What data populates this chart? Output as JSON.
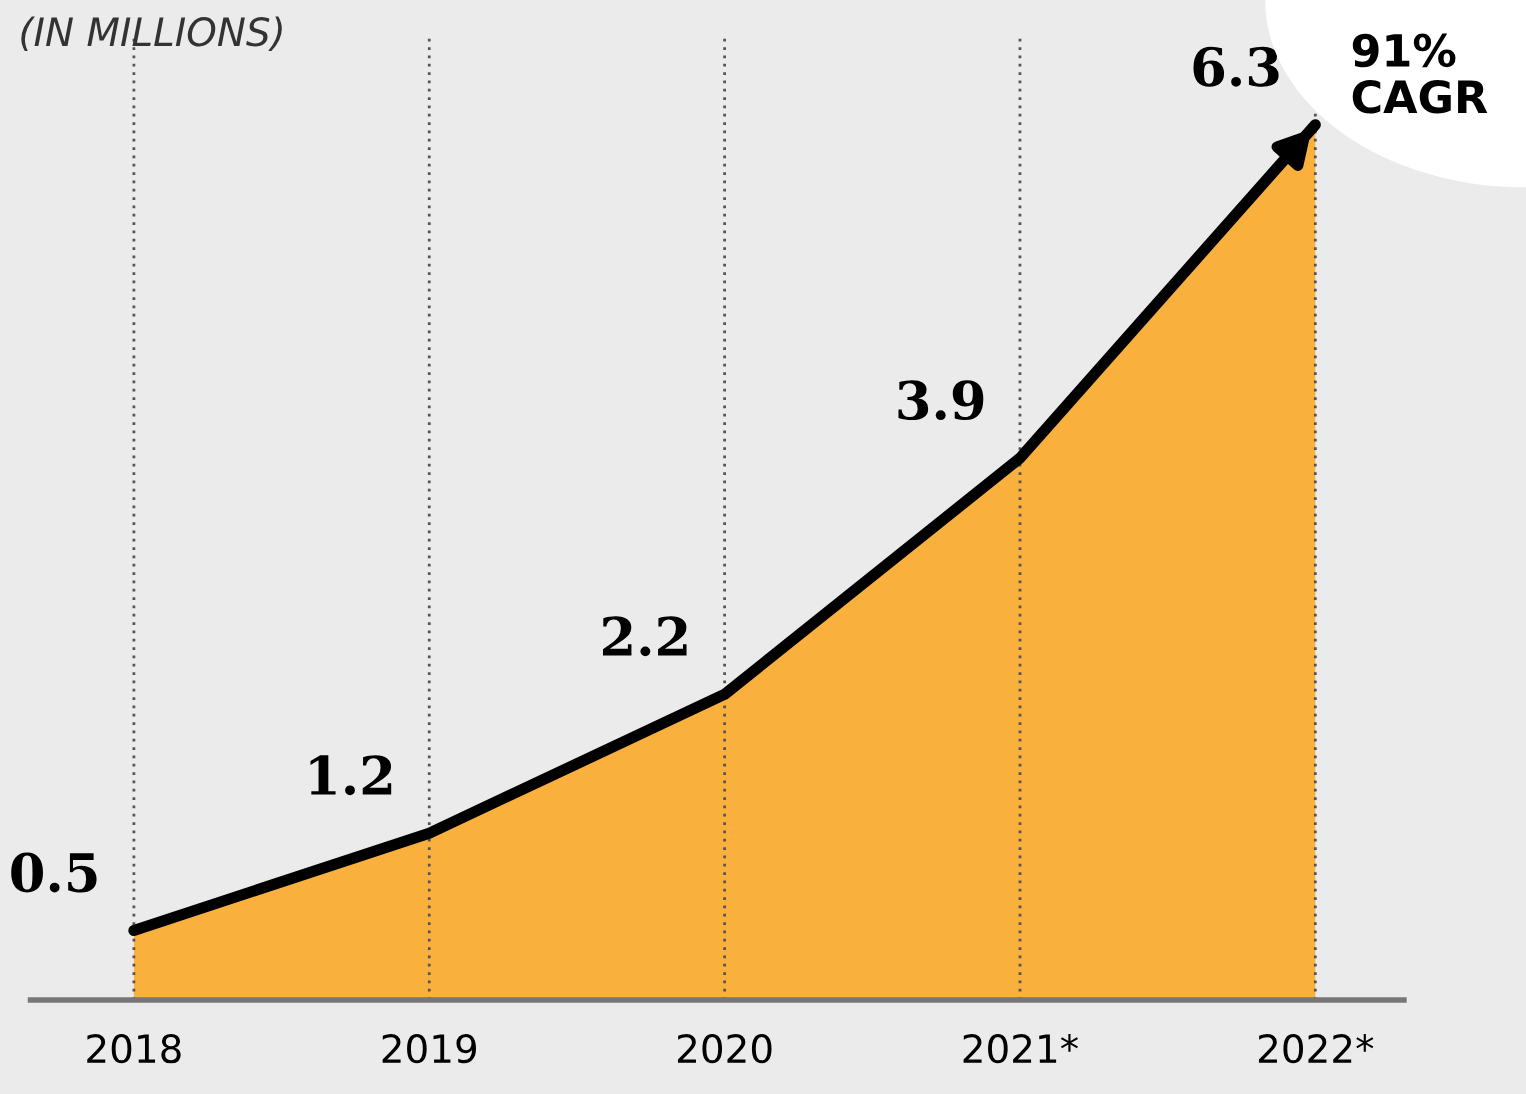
{
  "chart_data": {
    "type": "area",
    "title": "(IN MILLIONS)",
    "categories": [
      "2018",
      "2019",
      "2020",
      "2021*",
      "2022*"
    ],
    "series": [
      {
        "color": "#f9b03d",
        "values": [
          0.5,
          1.2,
          2.2,
          3.9,
          6.3
        ]
      }
    ],
    "data_labels": true,
    "grid": "x",
    "annotations": [
      "91%\nCAGR"
    ]
  }
}
